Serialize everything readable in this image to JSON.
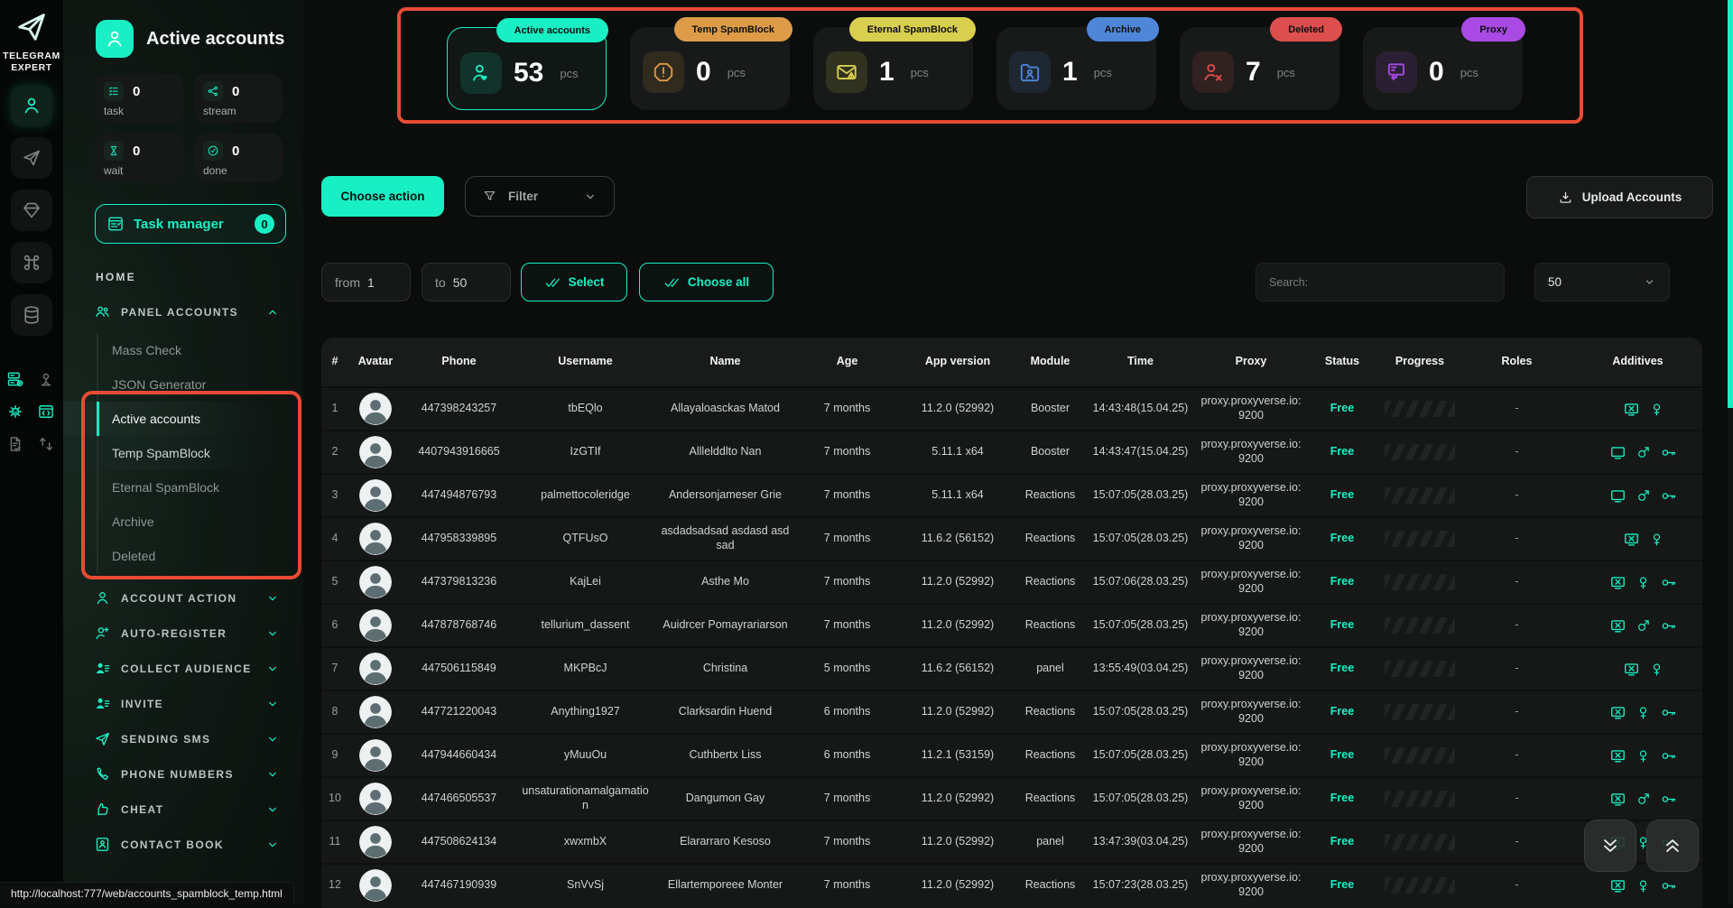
{
  "colors": {
    "accent": "#19efc4",
    "annotation": "#e84b35",
    "status_free": "#19efc4"
  },
  "brand": {
    "line1": "TELEGRAM",
    "line2": "EXPERT"
  },
  "rail": {
    "tabs": [
      {
        "name": "accounts",
        "icon": "person",
        "active": true
      },
      {
        "name": "sending",
        "icon": "plane",
        "active": false
      },
      {
        "name": "premium",
        "icon": "diamond",
        "active": false
      },
      {
        "name": "commands",
        "icon": "command",
        "active": false
      },
      {
        "name": "database",
        "icon": "database",
        "active": false
      }
    ],
    "minis": [
      {
        "name": "server-check",
        "icon": "server-check",
        "tone": "accent"
      },
      {
        "name": "person-cast",
        "icon": "person-cast",
        "tone": "gray"
      },
      {
        "name": "bot",
        "icon": "bot",
        "tone": "accent"
      },
      {
        "name": "code-window",
        "icon": "code-window",
        "tone": "accent"
      },
      {
        "name": "doc-check",
        "icon": "doc-check",
        "tone": "gray"
      },
      {
        "name": "swap",
        "icon": "swap",
        "tone": "gray"
      }
    ]
  },
  "sidebar": {
    "title": "Active accounts",
    "stats": [
      {
        "label": "task",
        "value": "0",
        "icon": "checklist"
      },
      {
        "label": "stream",
        "value": "0",
        "icon": "stream"
      },
      {
        "label": "wait",
        "value": "0",
        "icon": "hourglass"
      },
      {
        "label": "done",
        "value": "0",
        "icon": "check-circle"
      }
    ],
    "task_manager": {
      "label": "Task manager",
      "badge": "0"
    },
    "home_label": "HOME",
    "panel_accounts": {
      "label": "PANEL ACCOUNTS",
      "icon": "people",
      "expanded": true,
      "items": [
        {
          "label": "Mass Check",
          "state": "normal"
        },
        {
          "label": "JSON Generator",
          "state": "normal"
        },
        {
          "label": "Active accounts",
          "state": "active"
        },
        {
          "label": "Temp SpamBlock",
          "state": "hover"
        },
        {
          "label": "Eternal SpamBlock",
          "state": "normal"
        },
        {
          "label": "Archive",
          "state": "normal"
        },
        {
          "label": "Deleted",
          "state": "normal"
        }
      ]
    },
    "sections": [
      {
        "label": "ACCOUNT ACTION",
        "icon": "person"
      },
      {
        "label": "AUTO-REGISTER",
        "icon": "person-plus"
      },
      {
        "label": "COLLECT AUDIENCE",
        "icon": "person-list"
      },
      {
        "label": "INVITE",
        "icon": "person-list"
      },
      {
        "label": "SENDING SMS",
        "icon": "send"
      },
      {
        "label": "PHONE NUMBERS",
        "icon": "phone"
      },
      {
        "label": "CHEAT",
        "icon": "cheat"
      },
      {
        "label": "CONTACT BOOK",
        "icon": "book"
      }
    ]
  },
  "cards": [
    {
      "label": "Active accounts",
      "value": "53",
      "unit": "pcs",
      "color": "#19efc4",
      "icon": "user-heart",
      "active": true
    },
    {
      "label": "Temp SpamBlock",
      "value": "0",
      "unit": "pcs",
      "color": "#dd9b47",
      "icon": "octagon-alert",
      "active": false
    },
    {
      "label": "Eternal SpamBlock",
      "value": "1",
      "unit": "pcs",
      "color": "#d9cf4e",
      "icon": "mail-warning",
      "active": false
    },
    {
      "label": "Archive",
      "value": "1",
      "unit": "pcs",
      "color": "#4f86d8",
      "icon": "folder-user",
      "active": false
    },
    {
      "label": "Deleted",
      "value": "7",
      "unit": "pcs",
      "color": "#dd4f4f",
      "icon": "user-x",
      "active": false
    },
    {
      "label": "Proxy",
      "value": "0",
      "unit": "pcs",
      "color": "#a94ae4",
      "icon": "proxy-server",
      "active": false
    }
  ],
  "toolbar": {
    "choose_action": "Choose action",
    "filter": "Filter",
    "upload": "Upload Accounts"
  },
  "range": {
    "from_label": "from",
    "from_value": "1",
    "to_label": "to",
    "to_value": "50",
    "select_label": "Select",
    "choose_all_label": "Choose all",
    "search_placeholder": "Search:",
    "page_size": "50"
  },
  "table": {
    "columns": [
      "#",
      "Avatar",
      "Phone",
      "Username",
      "Name",
      "Age",
      "App version",
      "Module",
      "Time",
      "Proxy",
      "Status",
      "Progress",
      "Roles",
      "Additives"
    ],
    "rows": [
      {
        "num": "1",
        "phone": "447398243257",
        "username": "tbEQlo",
        "name": "Allayaloasckas Matod",
        "age": "7 months",
        "app": "11.2.0 (52992)",
        "module": "Booster",
        "time": "14:43:48(15.04.25)",
        "proxy": "proxy.proxyverse.io:9200",
        "status": "Free",
        "roles": "-",
        "additives": [
          "monitor-x",
          "female"
        ]
      },
      {
        "num": "2",
        "phone": "4407943916665",
        "username": "IzGTIf",
        "name": "Alllelddlto Nan",
        "age": "7 months",
        "app": "5.11.1 x64",
        "module": "Booster",
        "time": "14:43:47(15.04.25)",
        "proxy": "proxy.proxyverse.io:9200",
        "status": "Free",
        "roles": "-",
        "additives": [
          "monitor",
          "male",
          "key"
        ]
      },
      {
        "num": "3",
        "phone": "447494876793",
        "username": "palmettocoleridge",
        "name": "Andersonjameser Grie",
        "age": "7 months",
        "app": "5.11.1 x64",
        "module": "Reactions",
        "time": "15:07:05(28.03.25)",
        "proxy": "proxy.proxyverse.io:9200",
        "status": "Free",
        "roles": "-",
        "additives": [
          "monitor",
          "male",
          "key"
        ]
      },
      {
        "num": "4",
        "phone": "447958339895",
        "username": "QTFUsO",
        "name": "asdadsadsad asdasd asdsad",
        "age": "7 months",
        "app": "11.6.2 (56152)",
        "module": "Reactions",
        "time": "15:07:05(28.03.25)",
        "proxy": "proxy.proxyverse.io:9200",
        "status": "Free",
        "roles": "-",
        "additives": [
          "monitor-x",
          "female"
        ]
      },
      {
        "num": "5",
        "phone": "447379813236",
        "username": "KajLei",
        "name": "Asthe Mo",
        "age": "7 months",
        "app": "11.2.0 (52992)",
        "module": "Reactions",
        "time": "15:07:06(28.03.25)",
        "proxy": "proxy.proxyverse.io:9200",
        "status": "Free",
        "roles": "-",
        "additives": [
          "monitor-x",
          "female",
          "key"
        ]
      },
      {
        "num": "6",
        "phone": "447878768746",
        "username": "tellurium_dassent",
        "name": "Auidrcer Pomayrariarson",
        "age": "7 months",
        "app": "11.2.0 (52992)",
        "module": "Reactions",
        "time": "15:07:05(28.03.25)",
        "proxy": "proxy.proxyverse.io:9200",
        "status": "Free",
        "roles": "-",
        "additives": [
          "monitor-x",
          "male",
          "key"
        ]
      },
      {
        "num": "7",
        "phone": "447506115849",
        "username": "MKPBcJ",
        "name": "Christina",
        "age": "5 months",
        "app": "11.6.2 (56152)",
        "module": "panel",
        "time": "13:55:49(03.04.25)",
        "proxy": "proxy.proxyverse.io:9200",
        "status": "Free",
        "roles": "-",
        "additives": [
          "monitor-x",
          "female"
        ]
      },
      {
        "num": "8",
        "phone": "447721220043",
        "username": "Anything1927",
        "name": "Clarksardin Huend",
        "age": "6 months",
        "app": "11.2.0 (52992)",
        "module": "Reactions",
        "time": "15:07:05(28.03.25)",
        "proxy": "proxy.proxyverse.io:9200",
        "status": "Free",
        "roles": "-",
        "additives": [
          "monitor-x",
          "female",
          "key"
        ]
      },
      {
        "num": "9",
        "phone": "447944660434",
        "username": "yMuuOu",
        "name": "Cuthbertx Liss",
        "age": "6 months",
        "app": "11.2.1 (53159)",
        "module": "Reactions",
        "time": "15:07:05(28.03.25)",
        "proxy": "proxy.proxyverse.io:9200",
        "status": "Free",
        "roles": "-",
        "additives": [
          "monitor-x",
          "female",
          "key"
        ]
      },
      {
        "num": "10",
        "phone": "447466505537",
        "username": "unsaturationamalgamation",
        "name": "Dangumon Gay",
        "age": "7 months",
        "app": "11.2.0 (52992)",
        "module": "Reactions",
        "time": "15:07:05(28.03.25)",
        "proxy": "proxy.proxyverse.io:9200",
        "status": "Free",
        "roles": "-",
        "additives": [
          "monitor-x",
          "male",
          "key"
        ]
      },
      {
        "num": "11",
        "phone": "447508624134",
        "username": "xwxmbX",
        "name": "Elararraro Kesoso",
        "age": "7 months",
        "app": "11.2.0 (52992)",
        "module": "panel",
        "time": "13:47:39(03.04.25)",
        "proxy": "proxy.proxyverse.io:9200",
        "status": "Free",
        "roles": "-",
        "additives": [
          "monitor-x",
          "female",
          "key"
        ]
      },
      {
        "num": "12",
        "phone": "447467190939",
        "username": "SnVvSj",
        "name": "Ellartemporeee Monter",
        "age": "7 months",
        "app": "11.2.0 (52992)",
        "module": "Reactions",
        "time": "15:07:23(28.03.25)",
        "proxy": "proxy.proxyverse.io:9200",
        "status": "Free",
        "roles": "-",
        "additives": [
          "monitor-x",
          "female",
          "key"
        ]
      }
    ]
  },
  "statusbar": {
    "url": "http://localhost:777/web/accounts_spamblock_temp.html"
  }
}
